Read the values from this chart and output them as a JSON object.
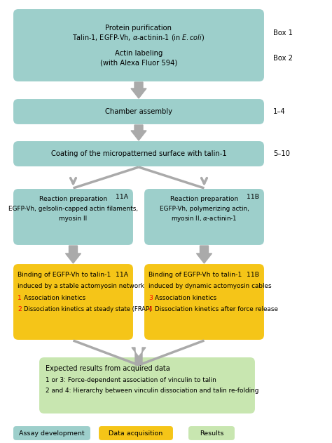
{
  "background_color": "#ffffff",
  "teal_color": "#9dcfcb",
  "orange_color": "#f5c518",
  "green_color": "#c8e6b0",
  "arrow_color": "#aaaaaa",
  "text_color": "#000000",
  "red_color": "#cc0000",
  "legend": [
    {
      "label": "Assay development",
      "color": "#9dcfcb"
    },
    {
      "label": "Data acquisition",
      "color": "#f5c518"
    },
    {
      "label": "Results",
      "color": "#c8e6b0"
    }
  ]
}
